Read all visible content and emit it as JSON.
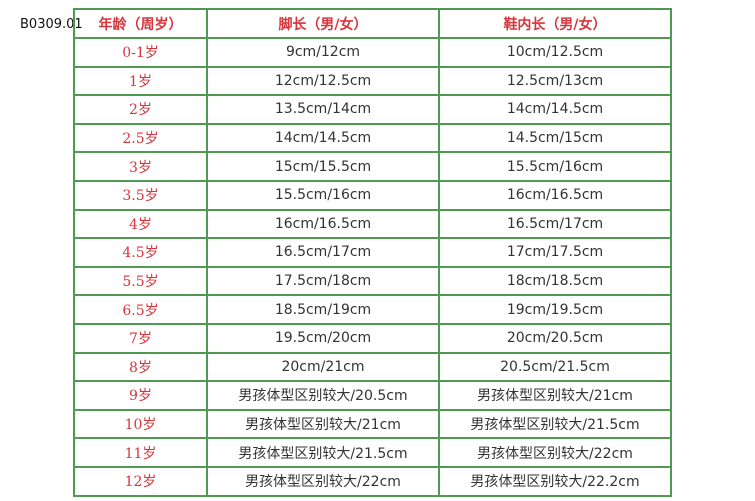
{
  "product_code": "B0309.01",
  "table": {
    "header": [
      "年龄（周岁）",
      "脚长（男/女）",
      "鞋内长（男/女）"
    ],
    "rows": [
      [
        "0-1岁",
        "9cm/12cm",
        "10cm/12.5cm"
      ],
      [
        "1岁",
        "12cm/12.5cm",
        "12.5cm/13cm"
      ],
      [
        "2岁",
        "13.5cm/14cm",
        "14cm/14.5cm"
      ],
      [
        "2.5岁",
        "14cm/14.5cm",
        "14.5cm/15cm"
      ],
      [
        "3岁",
        "15cm/15.5cm",
        "15.5cm/16cm"
      ],
      [
        "3.5岁",
        "15.5cm/16cm",
        "16cm/16.5cm"
      ],
      [
        "4岁",
        "16cm/16.5cm",
        "16.5cm/17cm"
      ],
      [
        "4.5岁",
        "16.5cm/17cm",
        "17cm/17.5cm"
      ],
      [
        "5.5岁",
        "17.5cm/18cm",
        "18cm/18.5cm"
      ],
      [
        "6.5岁",
        "18.5cm/19cm",
        "19cm/19.5cm"
      ],
      [
        "7岁",
        "19.5cm/20cm",
        "20cm/20.5cm"
      ],
      [
        "8岁",
        "20cm/21cm",
        "20.5cm/21.5cm"
      ],
      [
        "9岁",
        "男孩体型区别较大/20.5cm",
        "男孩体型区别较大/21cm"
      ],
      [
        "10岁",
        "男孩体型区别较大/21cm",
        "男孩体型区别较大/21.5cm"
      ],
      [
        "11岁",
        "男孩体型区别较大/21.5cm",
        "男孩体型区别较大/22cm"
      ],
      [
        "12岁",
        "男孩体型区别较大/22cm",
        "男孩体型区别较大/22.2cm"
      ]
    ]
  }
}
